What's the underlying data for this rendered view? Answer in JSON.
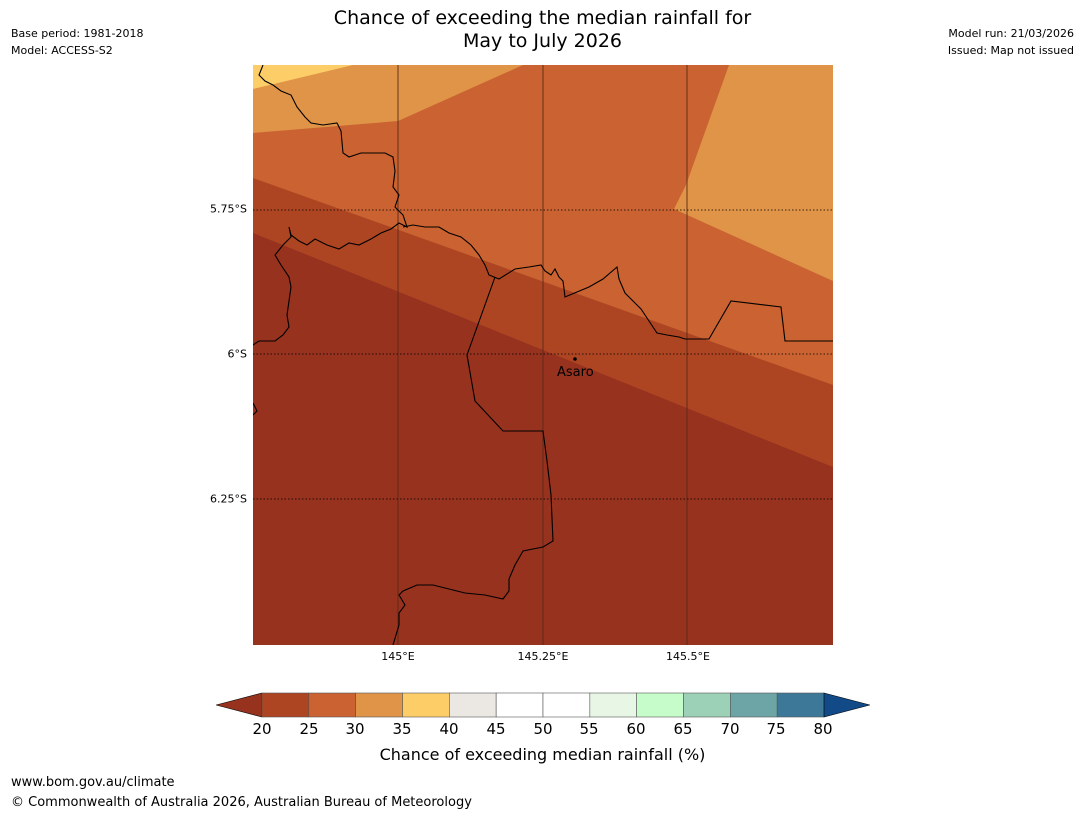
{
  "header": {
    "title_line1": "Chance of exceeding the median rainfall for",
    "title_line2": "May to July 2026",
    "base_period": "Base period: 1981-2018",
    "model": "Model: ACCESS-S2",
    "model_run": "Model run: 21/03/2026",
    "issued": "Issued: Map not issued"
  },
  "map": {
    "lat_labels": [
      "5.75°S",
      "6°S",
      "6.25°S"
    ],
    "lon_labels": [
      "145°E",
      "145.25°E",
      "145.5°E"
    ],
    "place": "Asaro"
  },
  "colorbar": {
    "label": "Chance of exceeding median rainfall (%)",
    "ticks": [
      "20",
      "25",
      "30",
      "35",
      "40",
      "45",
      "50",
      "55",
      "60",
      "65",
      "70",
      "75",
      "80"
    ],
    "under_color": "#97321f",
    "over_color": "#114a86",
    "colors": [
      "#ae4522",
      "#ca6331",
      "#e09448",
      "#fdcd68",
      "#ebe8e4",
      "#ffffff",
      "#ffffff",
      "#e8f6e5",
      "#c6fcc9",
      "#9dd1b7",
      "#6da5a6",
      "#3d7899"
    ]
  },
  "footer": {
    "url": "www.bom.gov.au/climate",
    "copyright": "© Commonwealth of Australia 2026, Australian Bureau of Meteorology"
  }
}
